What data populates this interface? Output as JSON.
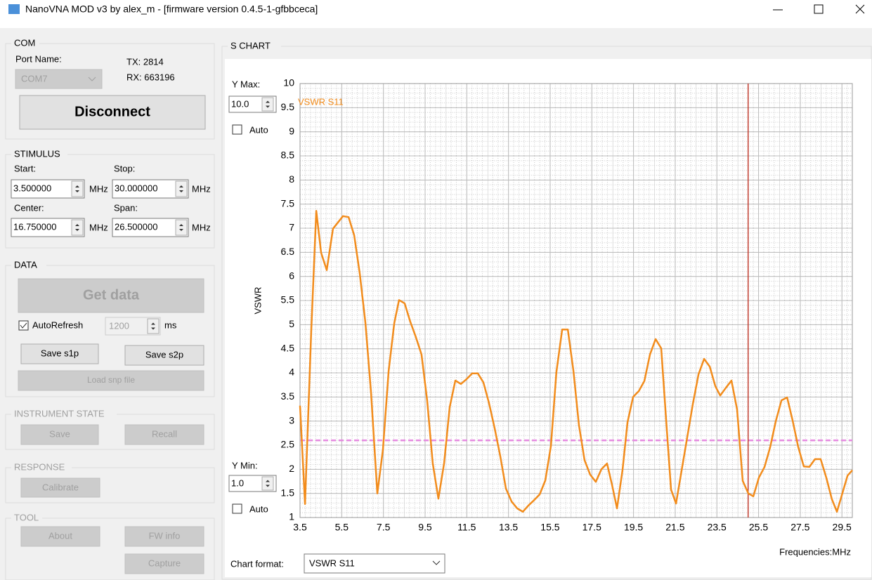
{
  "window": {
    "title": "NanoVNA MOD v3 by alex_m - [firmware version 0.4.5-1-gfbbceca]"
  },
  "com": {
    "title": "COM",
    "port_label": "Port Name:",
    "port_value": "COM7",
    "tx": "TX: 2814",
    "rx": "RX: 663196",
    "disconnect": "Disconnect"
  },
  "stimulus": {
    "title": "STIMULUS",
    "start_label": "Start:",
    "start_value": "3.500000",
    "start_unit": "MHz",
    "stop_label": "Stop:",
    "stop_value": "30.000000",
    "stop_unit": "MHz",
    "center_label": "Center:",
    "center_value": "16.750000",
    "center_unit": "MHz",
    "span_label": "Span:",
    "span_value": "26.500000",
    "span_unit": "MHz"
  },
  "data": {
    "title": "DATA",
    "get_data": "Get data",
    "autorefresh": "AutoRefresh",
    "interval": "1200",
    "interval_unit": "ms",
    "save_s1p": "Save s1p",
    "save_s2p": "Save s2p",
    "load": "Load snp file"
  },
  "instrument_state": {
    "title": "INSTRUMENT STATE",
    "save": "Save",
    "recall": "Recall"
  },
  "response": {
    "title": "RESPONSE",
    "calibrate": "Calibrate"
  },
  "tool": {
    "title": "TOOL",
    "about": "About",
    "fw_info": "FW info",
    "capture": "Capture"
  },
  "s_chart": {
    "title": "S CHART",
    "y_max_label": "Y Max:",
    "y_max_value": "10.0",
    "y_max_auto": "Auto",
    "y_min_label": "Y Min:",
    "y_min_value": "1.0",
    "y_min_auto": "Auto",
    "chart_format_label": "Chart format:",
    "chart_format_value": "VSWR S11"
  },
  "chart_data": {
    "type": "line",
    "y_label": "VSWR",
    "x_label": "Frequencies:MHz",
    "xlim": [
      3.5,
      30
    ],
    "ylim": [
      1,
      10
    ],
    "xticks": [
      3.5,
      5.5,
      7.5,
      9.5,
      11.5,
      13.5,
      15.5,
      17.5,
      19.5,
      21.5,
      23.5,
      25.5,
      27.5,
      29.5
    ],
    "yticks": [
      1,
      1.5,
      2,
      2.5,
      3,
      3.5,
      4,
      4.5,
      5,
      5.5,
      6,
      6.5,
      7,
      7.5,
      8,
      8.5,
      9,
      9.5,
      10
    ],
    "grid": true,
    "marker_x": 25,
    "marker_color": "#c0392b",
    "reference_y": 2.6,
    "reference_color": "#e58ae0",
    "x": [
      3.5,
      3.74,
      4.04,
      4.28,
      4.51,
      4.78,
      5.08,
      5.56,
      5.83,
      6.1,
      6.37,
      6.64,
      6.91,
      7.21,
      7.48,
      7.75,
      8.02,
      8.25,
      8.52,
      8.79,
      9.06,
      9.33,
      9.6,
      9.87,
      10.14,
      10.41,
      10.68,
      10.95,
      11.22,
      11.49,
      11.76,
      12.03,
      12.3,
      12.57,
      12.84,
      13.11,
      13.38,
      13.65,
      13.92,
      14.19,
      14.46,
      14.73,
      15,
      15.27,
      15.54,
      15.8,
      16.08,
      16.35,
      16.62,
      16.88,
      17.15,
      17.42,
      17.69,
      17.96,
      18.23,
      18.47,
      18.71,
      18.98,
      19.21,
      19.48,
      19.75,
      20.02,
      20.29,
      20.56,
      20.83,
      21.1,
      21.3,
      21.54,
      21.81,
      22.08,
      22.35,
      22.62,
      22.89,
      23.16,
      23.43,
      23.66,
      23.93,
      24.2,
      24.47,
      24.74,
      25.01,
      25.25,
      25.52,
      25.79,
      26.06,
      26.33,
      26.6,
      26.87,
      27.13,
      27.4,
      27.67,
      27.94,
      28.21,
      28.48,
      28.75,
      29.02,
      29.26,
      29.5,
      29.77,
      30
    ],
    "series": [
      {
        "name": "VSWR S11",
        "color": "#f28c1c",
        "values": [
          3.32,
          1.28,
          4.89,
          7.36,
          6.49,
          6.13,
          6.99,
          7.25,
          7.23,
          6.85,
          6.05,
          5.03,
          3.58,
          1.5,
          2.41,
          4.04,
          5.03,
          5.51,
          5.44,
          5.06,
          4.74,
          4.38,
          3.43,
          2.12,
          1.39,
          2.12,
          3.29,
          3.84,
          3.77,
          3.87,
          3.99,
          3.99,
          3.8,
          3.37,
          2.85,
          2.27,
          1.6,
          1.33,
          1.19,
          1.12,
          1.25,
          1.36,
          1.48,
          1.77,
          2.49,
          4.01,
          4.9,
          4.9,
          4.04,
          2.92,
          2.19,
          1.89,
          1.74,
          2,
          2.12,
          1.68,
          1.19,
          2,
          2.97,
          3.5,
          3.62,
          3.83,
          4.38,
          4.7,
          4.51,
          2.82,
          1.58,
          1.29,
          1.98,
          2.67,
          3.36,
          3.97,
          4.29,
          4.13,
          3.72,
          3.53,
          3.69,
          3.84,
          3.24,
          1.76,
          1.5,
          1.44,
          1.83,
          2.05,
          2.46,
          3,
          3.43,
          3.49,
          3.02,
          2.47,
          2.06,
          2.05,
          2.21,
          2.21,
          1.83,
          1.38,
          1.12,
          1.47,
          1.87,
          1.98
        ]
      }
    ]
  }
}
